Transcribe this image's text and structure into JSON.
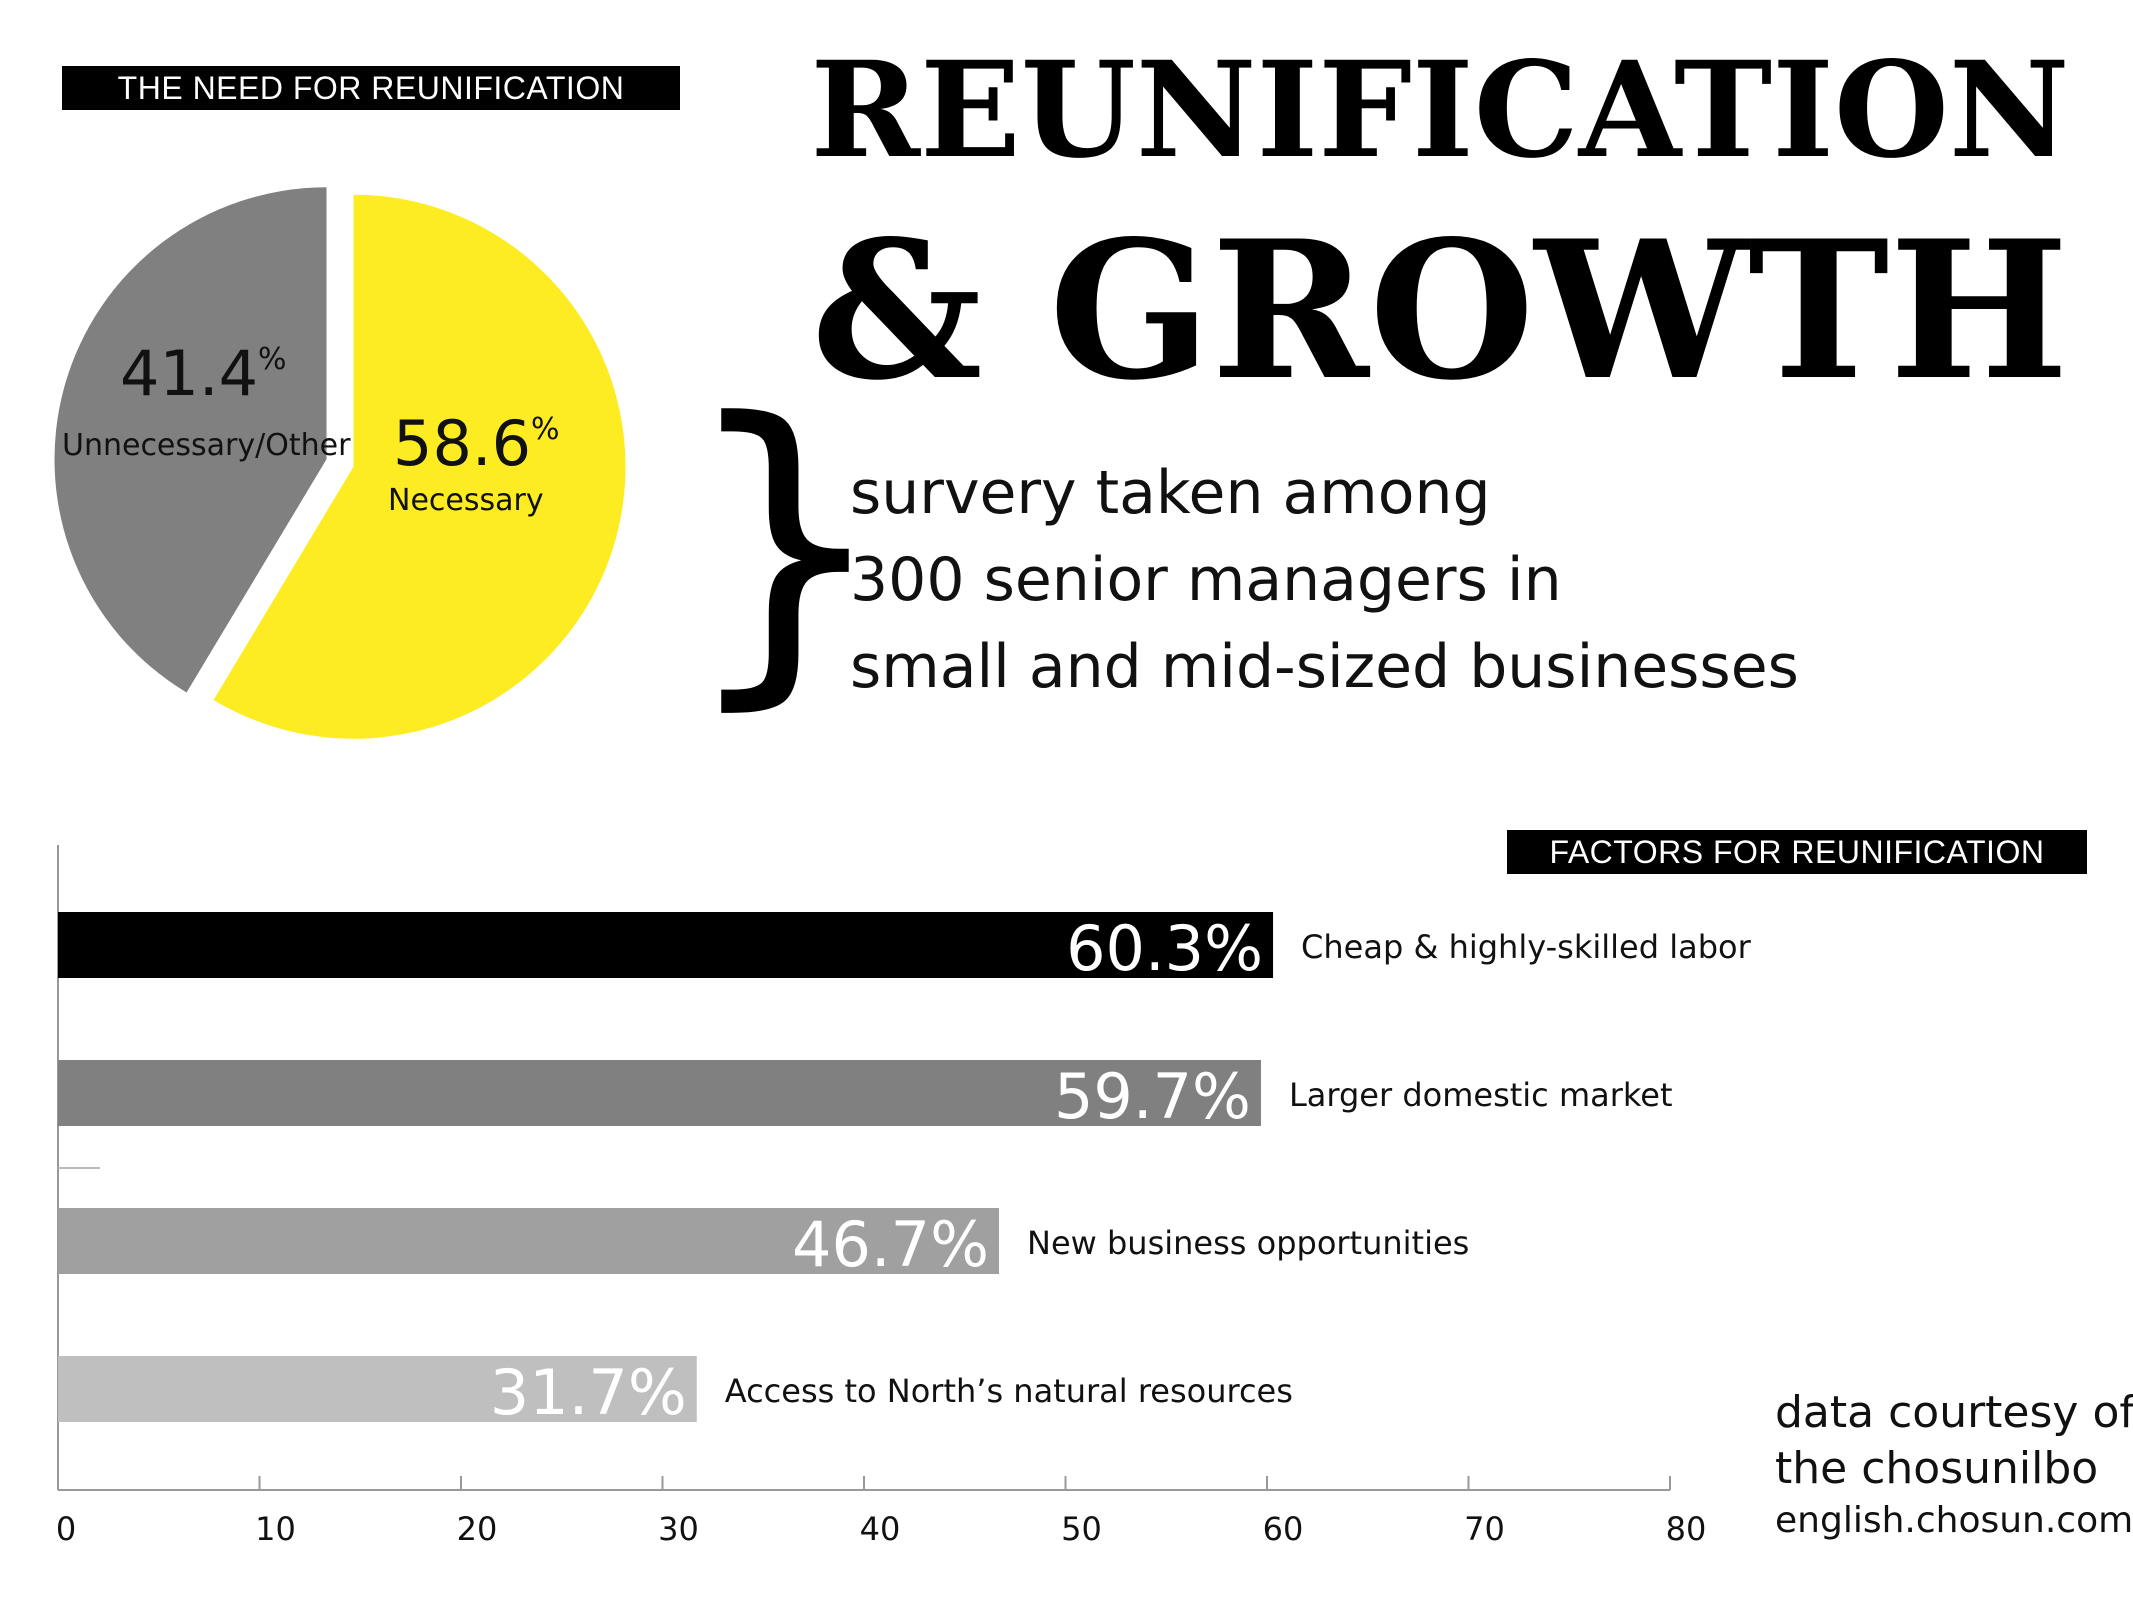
{
  "title": {
    "line1": "REUNIFICATION",
    "line2": "& GROWTH"
  },
  "survey_note": [
    "survery taken among",
    "300 senior managers in",
    "small and mid-sized businesses"
  ],
  "credit": {
    "line1": "data courtesy of",
    "line2": "the chosunilbo",
    "site": "english.chosun.com"
  },
  "chart_data": [
    {
      "type": "pie",
      "title": "THE NEED FOR REUNIFICATION",
      "slices": [
        {
          "label": "Necessary",
          "value": 58.6,
          "value_label": "58.6",
          "unit": "%",
          "color": "#FCEC21"
        },
        {
          "label": "Unnecessary/Other",
          "value": 41.4,
          "value_label": "41.4",
          "unit": "%",
          "color": "#808080"
        }
      ]
    },
    {
      "type": "bar",
      "orientation": "horizontal",
      "title": "FACTORS FOR REUNIFICATION",
      "categories": [
        "Cheap & highly-skilled labor",
        "Larger domestic market",
        "New business opportunities",
        "Access to North’s natural resources"
      ],
      "values": [
        60.3,
        59.7,
        46.7,
        31.7
      ],
      "value_labels": [
        "60.3%",
        "59.7%",
        "46.7%",
        "31.7%"
      ],
      "colors": [
        "#000000",
        "#808080",
        "#A0A0A0",
        "#BFBFBF"
      ],
      "xlim": [
        0,
        80
      ],
      "xticks": [
        0,
        10,
        20,
        30,
        40,
        50,
        60,
        70,
        80
      ],
      "xlabel": "",
      "ylabel": "",
      "grid": false
    }
  ]
}
